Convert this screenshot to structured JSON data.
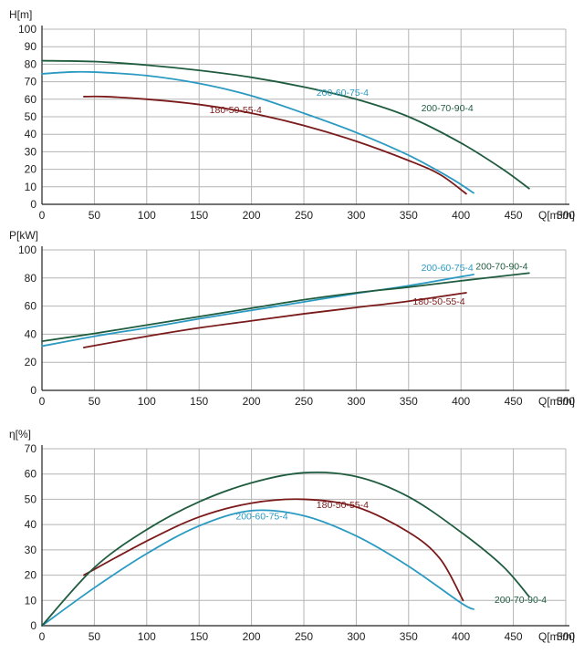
{
  "colors": {
    "s180": "#7b1a1a",
    "s200_60": "#2a9ac2",
    "s200_70": "#1f5c3f",
    "grid": "#b4b4b4",
    "axis": "#222222",
    "text": "#222222"
  },
  "chart_data": [
    {
      "type": "line",
      "ylabel": "H[m]",
      "xlabel": "Q[m³/h]",
      "xlim": [
        0,
        500
      ],
      "ylim": [
        0,
        100
      ],
      "x_ticks": [
        "0",
        "50",
        "100",
        "150",
        "200",
        "250",
        "300",
        "350",
        "400",
        "450",
        "500"
      ],
      "y_ticks": [
        "0",
        "10",
        "20",
        "30",
        "40",
        "50",
        "60",
        "70",
        "80",
        "90",
        "100"
      ],
      "grid": true,
      "series": [
        {
          "name": "180-50-55-4",
          "color_key": "s180",
          "x": [
            40,
            60,
            100,
            150,
            200,
            250,
            300,
            350,
            380,
            405
          ],
          "y": [
            61.5,
            61.5,
            60,
            57,
            52,
            45,
            36,
            25,
            17,
            6
          ]
        },
        {
          "name": "200-60-75-4",
          "color_key": "s200_60",
          "x": [
            0,
            25,
            50,
            100,
            150,
            200,
            250,
            300,
            350,
            390,
            412
          ],
          "y": [
            74.5,
            75.5,
            75.5,
            73.5,
            69,
            62,
            52,
            41,
            28,
            15,
            6.5
          ]
        },
        {
          "name": "200-70-90-4",
          "color_key": "s200_70",
          "x": [
            0,
            50,
            100,
            150,
            200,
            250,
            300,
            350,
            400,
            440,
            465
          ],
          "y": [
            82,
            81.5,
            79.5,
            76.5,
            72.5,
            67,
            60,
            50,
            35,
            20,
            9
          ]
        }
      ],
      "labels": [
        {
          "text": "180-50-55-4",
          "color_key": "s180",
          "x": 160,
          "y": 52
        },
        {
          "text": "200-60-75-4",
          "color_key": "s200_60",
          "x": 262,
          "y": 62
        },
        {
          "text": "200-70-90-4",
          "color_key": "s200_70",
          "x": 362,
          "y": 53
        }
      ]
    },
    {
      "type": "line",
      "ylabel": "P[kW]",
      "xlabel": "Q[m³/h]",
      "xlim": [
        0,
        500
      ],
      "ylim": [
        0,
        100
      ],
      "x_ticks": [
        "0",
        "50",
        "100",
        "150",
        "200",
        "250",
        "300",
        "350",
        "400",
        "450",
        "500"
      ],
      "y_ticks": [
        "0",
        "20",
        "40",
        "60",
        "80",
        "100"
      ],
      "grid": true,
      "series": [
        {
          "name": "180-50-55-4",
          "color_key": "s180",
          "x": [
            40,
            100,
            150,
            200,
            250,
            300,
            350,
            405
          ],
          "y": [
            30.5,
            38.5,
            44.5,
            49.5,
            54.5,
            59,
            63.5,
            69.5
          ]
        },
        {
          "name": "200-60-75-4",
          "color_key": "s200_60",
          "x": [
            0,
            50,
            100,
            150,
            200,
            250,
            300,
            350,
            412
          ],
          "y": [
            31.5,
            38.5,
            44.5,
            51,
            57,
            63,
            69,
            74.5,
            82.5
          ]
        },
        {
          "name": "200-70-90-4",
          "color_key": "s200_70",
          "x": [
            0,
            50,
            100,
            150,
            200,
            250,
            300,
            350,
            400,
            465
          ],
          "y": [
            35,
            40.5,
            46.5,
            52.5,
            58.5,
            64.5,
            69.5,
            73.5,
            78,
            83.5
          ]
        }
      ],
      "labels": [
        {
          "text": "200-60-75-4",
          "color_key": "s200_60",
          "x": 362,
          "y": 85
        },
        {
          "text": "200-70-90-4",
          "color_key": "s200_70",
          "x": 414,
          "y": 86
        },
        {
          "text": "180-50-55-4",
          "color_key": "s180",
          "x": 354,
          "y": 61
        }
      ]
    },
    {
      "type": "line",
      "ylabel": "η[%]",
      "xlabel": "Q[m³/h]",
      "xlim": [
        0,
        500
      ],
      "ylim": [
        0,
        70
      ],
      "x_ticks": [
        "0",
        "50",
        "100",
        "150",
        "200",
        "250",
        "300",
        "350",
        "400",
        "450",
        "500"
      ],
      "y_ticks": [
        "0",
        "10",
        "20",
        "30",
        "40",
        "50",
        "60",
        "70"
      ],
      "grid": true,
      "series": [
        {
          "name": "180-50-55-4",
          "color_key": "s180",
          "x": [
            40,
            100,
            150,
            200,
            250,
            300,
            350,
            380,
            402
          ],
          "y": [
            20,
            33.5,
            43,
            48.5,
            50,
            47,
            37,
            26.5,
            10
          ]
        },
        {
          "name": "200-60-75-4",
          "color_key": "s200_60",
          "x": [
            0,
            50,
            100,
            150,
            200,
            250,
            300,
            350,
            400,
            412
          ],
          "y": [
            0,
            15,
            28.5,
            39.5,
            45.5,
            43.5,
            35.5,
            23.5,
            9,
            6.5
          ]
        },
        {
          "name": "200-70-90-4",
          "color_key": "s200_70",
          "x": [
            0,
            50,
            100,
            150,
            200,
            250,
            300,
            350,
            400,
            440,
            465
          ],
          "y": [
            0,
            23,
            38,
            49,
            56.5,
            60.5,
            59,
            51,
            37,
            23.5,
            11.5
          ]
        }
      ],
      "labels": [
        {
          "text": "180-50-55-4",
          "color_key": "s180",
          "x": 262,
          "y": 46.5
        },
        {
          "text": "200-60-75-4",
          "color_key": "s200_60",
          "x": 185,
          "y": 42
        },
        {
          "text": "200-70-90-4",
          "color_key": "s200_70",
          "x": 432,
          "y": 9
        }
      ]
    }
  ]
}
